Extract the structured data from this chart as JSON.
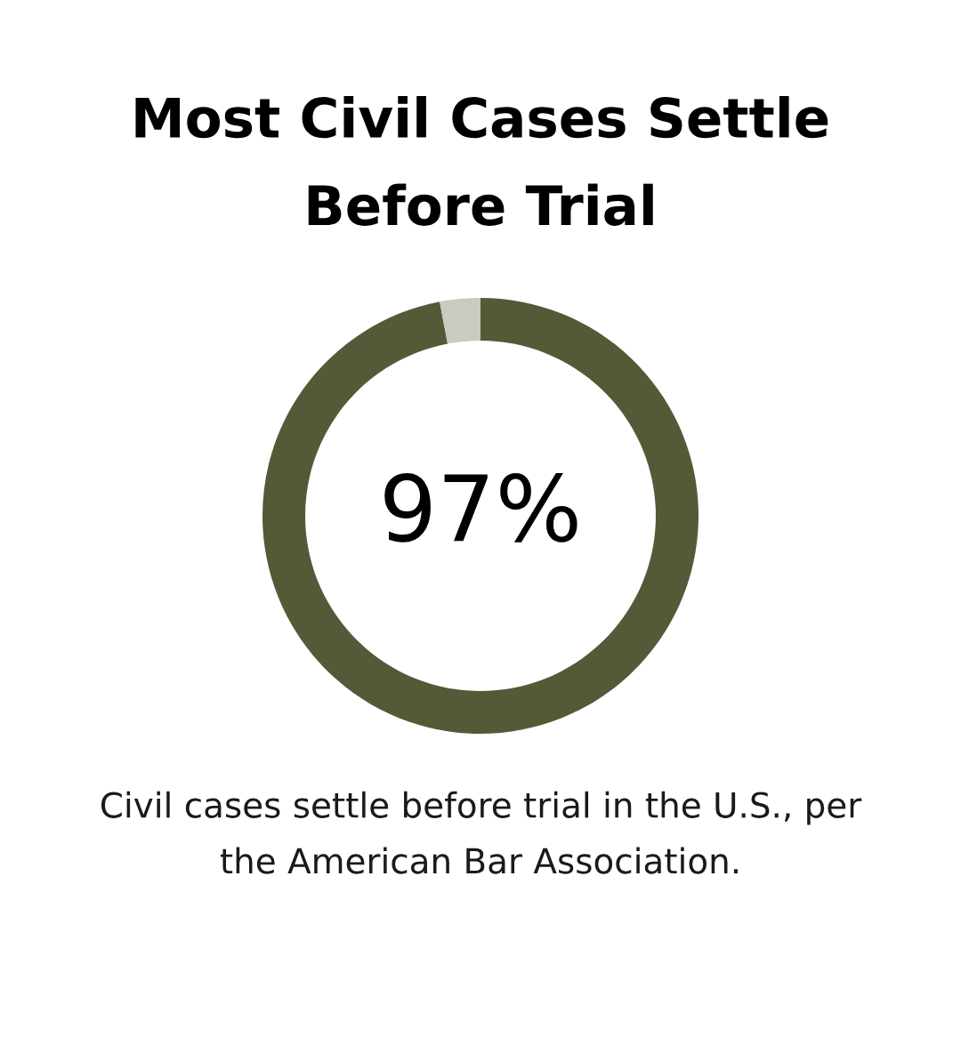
{
  "chart_data": {
    "type": "donut",
    "title": "Most Civil Cases Settle Before Trial",
    "categories": [
      null,
      null
    ],
    "values": [
      97,
      3
    ],
    "colors": [
      "#525a38",
      "#c8cbc1"
    ],
    "annotations": [
      "97%",
      "Civil cases settle before trial in the U.S., per the American Bar Association."
    ]
  }
}
